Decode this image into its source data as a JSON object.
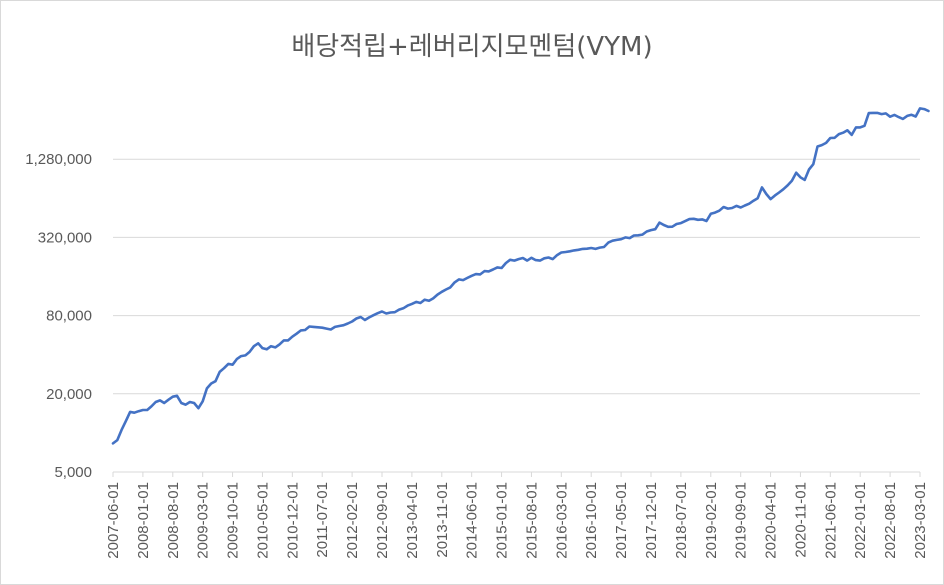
{
  "chart_data": {
    "type": "line",
    "title": "배당적립+레버리지모멘텀(VYM)",
    "xlabel": "",
    "ylabel": "",
    "y_scale": "log",
    "ylim": [
      5000,
      5120000
    ],
    "grid": true,
    "legend": "none",
    "y_ticks": [
      {
        "value": 5000,
        "label": "5,000"
      },
      {
        "value": 20000,
        "label": "20,000"
      },
      {
        "value": 80000,
        "label": "80,000"
      },
      {
        "value": 320000,
        "label": "320,000"
      },
      {
        "value": 1280000,
        "label": "1,280,000"
      }
    ],
    "x_ticks": [
      "2007-06-01",
      "2008-01-01",
      "2008-08-01",
      "2009-03-01",
      "2009-10-01",
      "2010-05-01",
      "2010-12-01",
      "2011-07-01",
      "2012-02-01",
      "2012-09-01",
      "2013-04-01",
      "2013-11-01",
      "2014-06-01",
      "2015-01-01",
      "2015-08-01",
      "2016-03-01",
      "2016-10-01",
      "2017-05-01",
      "2017-12-01",
      "2018-07-01",
      "2019-02-01",
      "2019-09-01",
      "2020-04-01",
      "2020-11-01",
      "2021-06-01",
      "2022-01-01",
      "2022-08-01",
      "2023-03-01"
    ],
    "series": [
      {
        "name": "",
        "color": "#4472c4",
        "points": [
          [
            "2007-06-01",
            8300
          ],
          [
            "2007-07-01",
            8800
          ],
          [
            "2007-08-01",
            10500
          ],
          [
            "2007-09-01",
            12300
          ],
          [
            "2007-10-01",
            14500
          ],
          [
            "2007-11-01",
            14300
          ],
          [
            "2007-12-01",
            14700
          ],
          [
            "2008-01-01",
            15000
          ],
          [
            "2008-02-01",
            15000
          ],
          [
            "2008-03-01",
            16000
          ],
          [
            "2008-04-01",
            17300
          ],
          [
            "2008-05-01",
            17800
          ],
          [
            "2008-06-01",
            17000
          ],
          [
            "2008-07-01",
            18000
          ],
          [
            "2008-08-01",
            19000
          ],
          [
            "2008-09-01",
            19300
          ],
          [
            "2008-10-01",
            17000
          ],
          [
            "2008-11-01",
            16500
          ],
          [
            "2008-12-01",
            17300
          ],
          [
            "2009-01-01",
            17000
          ],
          [
            "2009-02-01",
            15500
          ],
          [
            "2009-03-01",
            17500
          ],
          [
            "2009-04-01",
            22000
          ],
          [
            "2009-05-01",
            24000
          ],
          [
            "2009-06-01",
            25000
          ],
          [
            "2009-07-01",
            29500
          ],
          [
            "2009-08-01",
            31500
          ],
          [
            "2009-09-01",
            34000
          ],
          [
            "2009-10-01",
            33500
          ],
          [
            "2009-11-01",
            37000
          ],
          [
            "2009-12-01",
            39000
          ],
          [
            "2010-01-01",
            39500
          ],
          [
            "2010-02-01",
            42000
          ],
          [
            "2010-03-01",
            46500
          ],
          [
            "2010-04-01",
            49000
          ],
          [
            "2010-05-01",
            45000
          ],
          [
            "2010-06-01",
            44000
          ],
          [
            "2010-07-01",
            46500
          ],
          [
            "2010-08-01",
            45500
          ],
          [
            "2010-09-01",
            48000
          ],
          [
            "2010-10-01",
            51500
          ],
          [
            "2010-11-01",
            51500
          ],
          [
            "2010-12-01",
            55000
          ],
          [
            "2011-01-01",
            58000
          ],
          [
            "2011-02-01",
            61500
          ],
          [
            "2011-03-01",
            62000
          ],
          [
            "2011-04-01",
            66000
          ],
          [
            "2011-05-01",
            65500
          ],
          [
            "2011-06-01",
            65000
          ],
          [
            "2011-07-01",
            64500
          ],
          [
            "2011-08-01",
            63500
          ],
          [
            "2011-09-01",
            62500
          ],
          [
            "2011-10-01",
            65500
          ],
          [
            "2011-11-01",
            66500
          ],
          [
            "2011-12-01",
            67500
          ],
          [
            "2012-01-01",
            69500
          ],
          [
            "2012-02-01",
            72000
          ],
          [
            "2012-03-01",
            76000
          ],
          [
            "2012-04-01",
            78000
          ],
          [
            "2012-05-01",
            74000
          ],
          [
            "2012-06-01",
            77500
          ],
          [
            "2012-07-01",
            80500
          ],
          [
            "2012-08-01",
            83500
          ],
          [
            "2012-09-01",
            86000
          ],
          [
            "2012-10-01",
            83000
          ],
          [
            "2012-11-01",
            84500
          ],
          [
            "2012-12-01",
            85000
          ],
          [
            "2013-01-01",
            89000
          ],
          [
            "2013-02-01",
            91000
          ],
          [
            "2013-03-01",
            95500
          ],
          [
            "2013-04-01",
            98500
          ],
          [
            "2013-05-01",
            102000
          ],
          [
            "2013-06-01",
            100000
          ],
          [
            "2013-07-01",
            106000
          ],
          [
            "2013-08-01",
            104000
          ],
          [
            "2013-09-01",
            108500
          ],
          [
            "2013-10-01",
            116000
          ],
          [
            "2013-11-01",
            122000
          ],
          [
            "2013-12-01",
            127000
          ],
          [
            "2014-01-01",
            132000
          ],
          [
            "2014-02-01",
            144000
          ],
          [
            "2014-03-01",
            152000
          ],
          [
            "2014-04-01",
            150000
          ],
          [
            "2014-05-01",
            156000
          ],
          [
            "2014-06-01",
            162000
          ],
          [
            "2014-07-01",
            167000
          ],
          [
            "2014-08-01",
            166000
          ],
          [
            "2014-09-01",
            176000
          ],
          [
            "2014-10-01",
            175000
          ],
          [
            "2014-11-01",
            181000
          ],
          [
            "2014-12-01",
            188000
          ],
          [
            "2015-01-01",
            186000
          ],
          [
            "2015-02-01",
            203000
          ],
          [
            "2015-03-01",
            215000
          ],
          [
            "2015-04-01",
            212000
          ],
          [
            "2015-05-01",
            218000
          ],
          [
            "2015-06-01",
            222000
          ],
          [
            "2015-07-01",
            212000
          ],
          [
            "2015-08-01",
            223000
          ],
          [
            "2015-09-01",
            214000
          ],
          [
            "2015-10-01",
            212000
          ],
          [
            "2015-11-01",
            221000
          ],
          [
            "2015-12-01",
            224000
          ],
          [
            "2016-01-01",
            218000
          ],
          [
            "2016-02-01",
            234000
          ],
          [
            "2016-03-01",
            245000
          ],
          [
            "2016-04-01",
            247000
          ],
          [
            "2016-05-01",
            250000
          ],
          [
            "2016-06-01",
            254000
          ],
          [
            "2016-07-01",
            257000
          ],
          [
            "2016-08-01",
            261000
          ],
          [
            "2016-09-01",
            262000
          ],
          [
            "2016-10-01",
            265000
          ],
          [
            "2016-11-01",
            261000
          ],
          [
            "2016-12-01",
            267000
          ],
          [
            "2017-01-01",
            270000
          ],
          [
            "2017-02-01",
            292000
          ],
          [
            "2017-03-01",
            302000
          ],
          [
            "2017-04-01",
            306000
          ],
          [
            "2017-05-01",
            310000
          ],
          [
            "2017-06-01",
            320000
          ],
          [
            "2017-07-01",
            316000
          ],
          [
            "2017-08-01",
            331000
          ],
          [
            "2017-09-01",
            332000
          ],
          [
            "2017-10-01",
            336000
          ],
          [
            "2017-11-01",
            355000
          ],
          [
            "2017-12-01",
            364000
          ],
          [
            "2018-01-01",
            370000
          ],
          [
            "2018-02-01",
            416000
          ],
          [
            "2018-03-01",
            399000
          ],
          [
            "2018-04-01",
            386000
          ],
          [
            "2018-05-01",
            387000
          ],
          [
            "2018-06-01",
            406000
          ],
          [
            "2018-07-01",
            412000
          ],
          [
            "2018-08-01",
            427000
          ],
          [
            "2018-09-01",
            443000
          ],
          [
            "2018-10-01",
            445000
          ],
          [
            "2018-11-01",
            437000
          ],
          [
            "2018-12-01",
            440000
          ],
          [
            "2019-01-01",
            428000
          ],
          [
            "2019-02-01",
            486000
          ],
          [
            "2019-03-01",
            497000
          ],
          [
            "2019-04-01",
            514000
          ],
          [
            "2019-05-01",
            549000
          ],
          [
            "2019-06-01",
            533000
          ],
          [
            "2019-07-01",
            539000
          ],
          [
            "2019-08-01",
            559000
          ],
          [
            "2019-09-01",
            544000
          ],
          [
            "2019-10-01",
            563000
          ],
          [
            "2019-11-01",
            582000
          ],
          [
            "2019-12-01",
            613000
          ],
          [
            "2020-01-01",
            641000
          ],
          [
            "2020-02-01",
            777000
          ],
          [
            "2020-03-01",
            691000
          ],
          [
            "2020-04-01",
            631000
          ],
          [
            "2020-05-01",
            671000
          ],
          [
            "2020-06-01",
            709000
          ],
          [
            "2020-07-01",
            752000
          ],
          [
            "2020-08-01",
            804000
          ],
          [
            "2020-09-01",
            875000
          ],
          [
            "2020-10-01",
            1008000
          ],
          [
            "2020-11-01",
            929000
          ],
          [
            "2020-12-01",
            887000
          ],
          [
            "2021-01-01",
            1067000
          ],
          [
            "2021-02-01",
            1172000
          ],
          [
            "2021-03-01",
            1603000
          ],
          [
            "2021-04-01",
            1644000
          ],
          [
            "2021-05-01",
            1708000
          ],
          [
            "2021-06-01",
            1865000
          ],
          [
            "2021-07-01",
            1869000
          ],
          [
            "2021-08-01",
            1997000
          ],
          [
            "2021-09-01",
            2046000
          ],
          [
            "2021-10-01",
            2135000
          ],
          [
            "2021-11-01",
            1970000
          ],
          [
            "2021-12-01",
            2249000
          ],
          [
            "2022-01-01",
            2249000
          ],
          [
            "2022-02-01",
            2314000
          ],
          [
            "2022-03-01",
            2900000
          ],
          [
            "2022-04-01",
            2911000
          ],
          [
            "2022-05-01",
            2907000
          ],
          [
            "2022-06-01",
            2847000
          ],
          [
            "2022-07-01",
            2885000
          ],
          [
            "2022-08-01",
            2720000
          ],
          [
            "2022-09-01",
            2806000
          ],
          [
            "2022-10-01",
            2701000
          ],
          [
            "2022-11-01",
            2617000
          ],
          [
            "2022-12-01",
            2760000
          ],
          [
            "2023-01-01",
            2810000
          ],
          [
            "2023-02-01",
            2730000
          ],
          [
            "2023-03-01",
            3150000
          ],
          [
            "2023-04-01",
            3110000
          ],
          [
            "2023-05-01",
            3010000
          ]
        ]
      }
    ]
  }
}
